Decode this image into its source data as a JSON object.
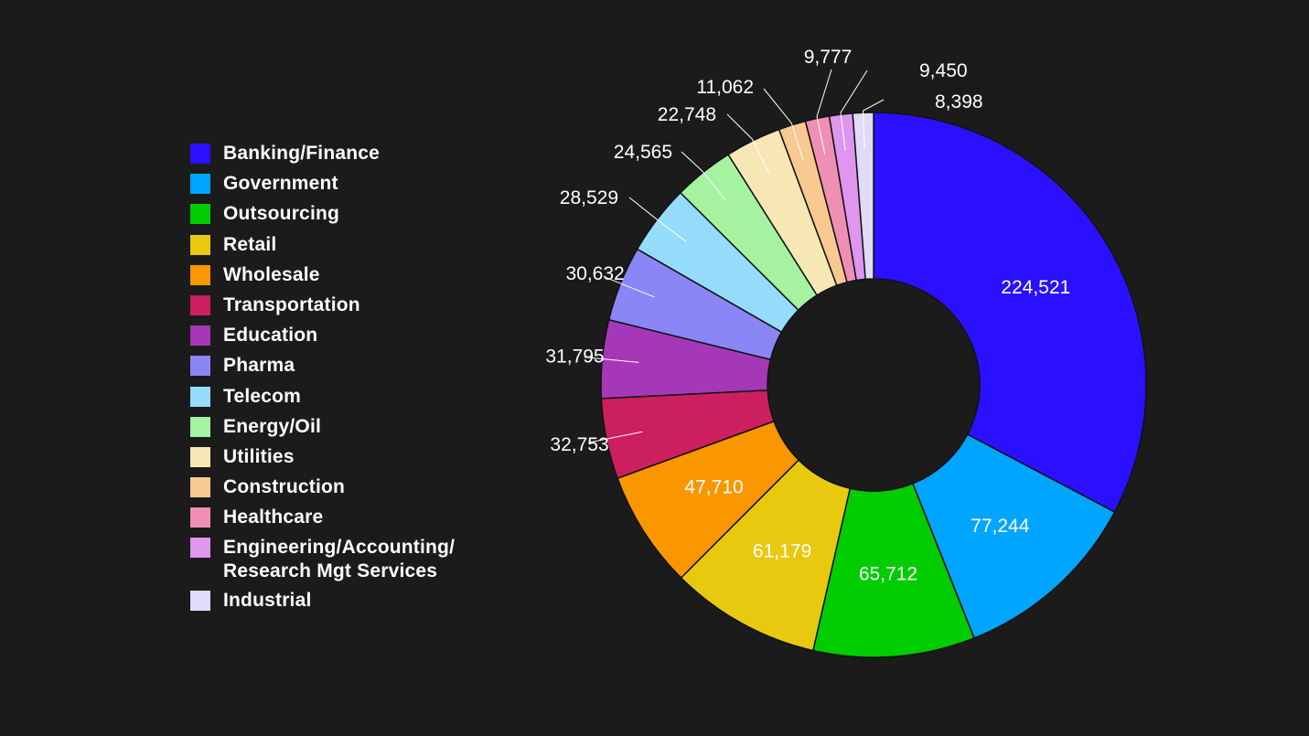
{
  "chart_data": {
    "type": "pie",
    "variant": "donut",
    "categories": [
      "Banking/Finance",
      "Government",
      "Outsourcing",
      "Retail",
      "Wholesale",
      "Transportation",
      "Education",
      "Pharma",
      "Telecom",
      "Energy/Oil",
      "Utilities",
      "Construction",
      "Healthcare",
      "Engineering/Accounting/\nResearch Mgt Services",
      "Industrial"
    ],
    "values": [
      224521,
      77244,
      65712,
      61179,
      47710,
      32753,
      31795,
      30632,
      28529,
      24565,
      22748,
      11062,
      9777,
      9450,
      8398
    ],
    "labels": [
      "224,521",
      "77,244",
      "65,712",
      "61,179",
      "47,710",
      "32,753",
      "31,795",
      "30,632",
      "28,529",
      "24,565",
      "22,748",
      "11,062",
      "9,777",
      "9,450",
      "8,398"
    ],
    "colors": [
      "#2b10ff",
      "#00a5ff",
      "#00cc00",
      "#e8c90f",
      "#fa9700",
      "#cc1f5f",
      "#a538b8",
      "#8b86f5",
      "#95dcfb",
      "#a5f3a0",
      "#f6e7b5",
      "#f8c990",
      "#ef8fb4",
      "#de96ee",
      "#dedcf8"
    ],
    "start_angle_deg": 0,
    "direction": "clockwise",
    "legend_position": "left",
    "title": "",
    "background": "#1b1b1b"
  }
}
